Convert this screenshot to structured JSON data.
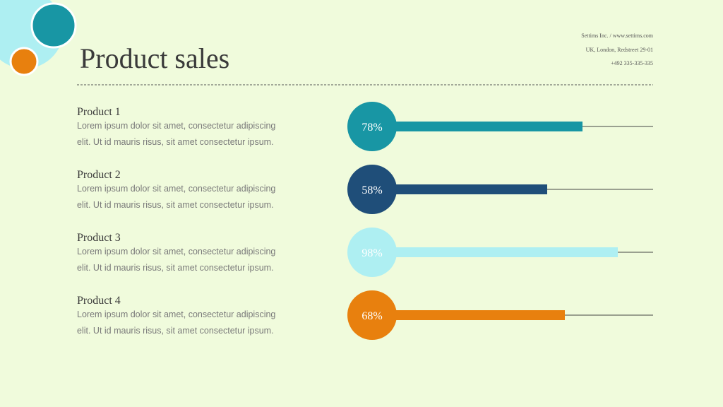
{
  "header": {
    "title": "Product sales",
    "company": "Settims Inc. / www.settims.com",
    "address": "UK, London, Redstreet 29-01",
    "phone": "+492 335-335-335"
  },
  "chart_data": {
    "type": "bar",
    "categories": [
      "Product 1",
      "Product 2",
      "Product 3",
      "Product 4"
    ],
    "descriptions": [
      "Lorem ipsum dolor sit amet, consectetur adipiscing elit. Ut id mauris risus, sit amet consectetur ipsum.",
      "Lorem ipsum dolor sit amet, consectetur adipiscing elit. Ut id mauris risus, sit amet consectetur ipsum.",
      "Lorem ipsum dolor sit amet, consectetur adipiscing elit. Ut id mauris risus, sit amet consectetur ipsum.",
      "Lorem ipsum dolor sit amet, consectetur adipiscing elit. Ut id mauris risus, sit amet consectetur ipsum."
    ],
    "values": [
      78,
      58,
      98,
      68
    ],
    "value_labels": [
      "78%",
      "58%",
      "98%",
      "68%"
    ],
    "colors": [
      "#1896a4",
      "#1f4e79",
      "#aeeff2",
      "#e8800e"
    ],
    "xlim": [
      0,
      100
    ]
  }
}
